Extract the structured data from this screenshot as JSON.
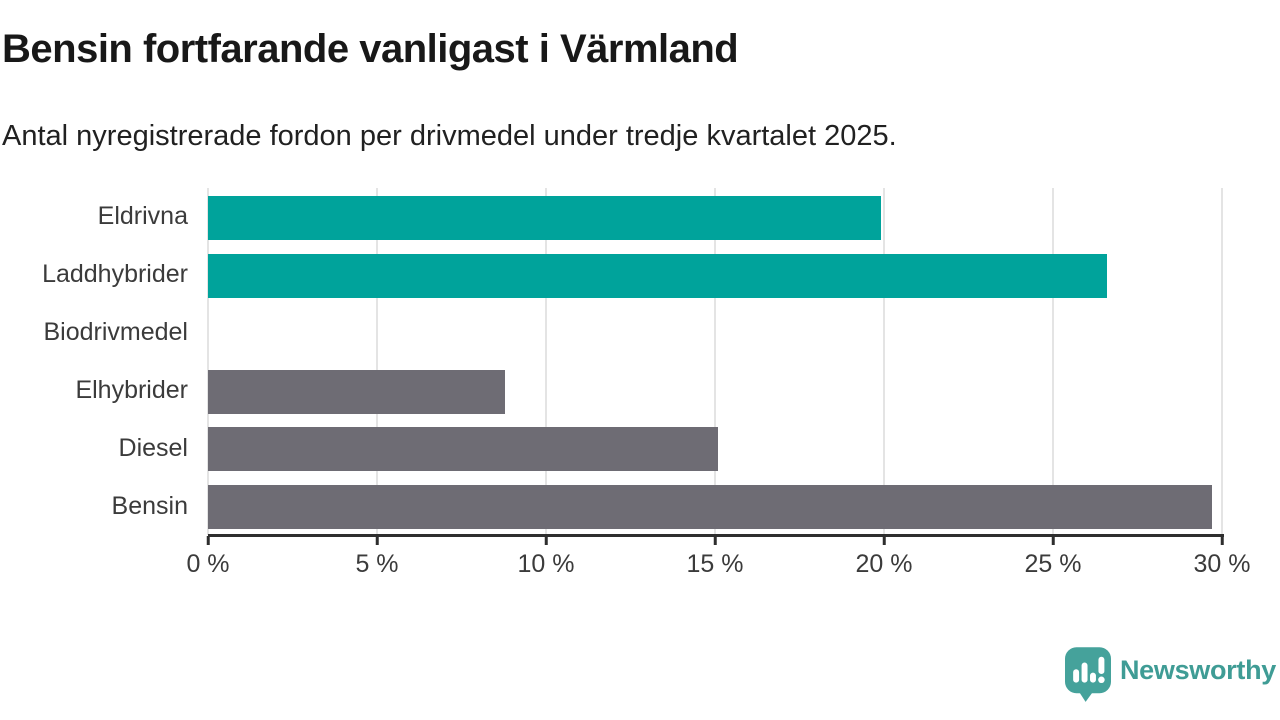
{
  "header": {
    "title": "Bensin fortfarande vanligast i Värmland",
    "subtitle": "Antal nyregistrerade fordon per drivmedel under tredje kvartalet 2025."
  },
  "chart_data": {
    "type": "bar",
    "orientation": "horizontal",
    "title": "Bensin fortfarande vanligast i Värmland",
    "subtitle": "Antal nyregistrerade fordon per drivmedel under tredje kvartalet 2025.",
    "categories": [
      "Eldrivna",
      "Laddhybrider",
      "Biodrivmedel",
      "Elhybrider",
      "Diesel",
      "Bensin"
    ],
    "values": [
      19.9,
      26.6,
      0,
      8.8,
      15.1,
      29.7
    ],
    "unit": "%",
    "xlim": [
      0,
      30
    ],
    "x_ticks": [
      0,
      5,
      10,
      15,
      20,
      25,
      30
    ],
    "x_tick_labels": [
      "0 %",
      "5 %",
      "10 %",
      "15 %",
      "20 %",
      "25 %",
      "30 %"
    ],
    "grid": true,
    "legend": "none",
    "bar_colors": [
      "#00a39b",
      "#00a39b",
      "#00a39b",
      "#6e6c74",
      "#6e6c74",
      "#6e6c74"
    ]
  },
  "colors": {
    "teal_bar": "#00a39b",
    "gray_bar": "#6e6c74",
    "gridline": "#e4e4e4",
    "axis": "#2e2e2e",
    "brand_teal": "#3f9c95"
  },
  "branding": {
    "logo_text": "Newsworthy",
    "logo_icon": "newsworthy-bar-chart-bubble-icon"
  }
}
